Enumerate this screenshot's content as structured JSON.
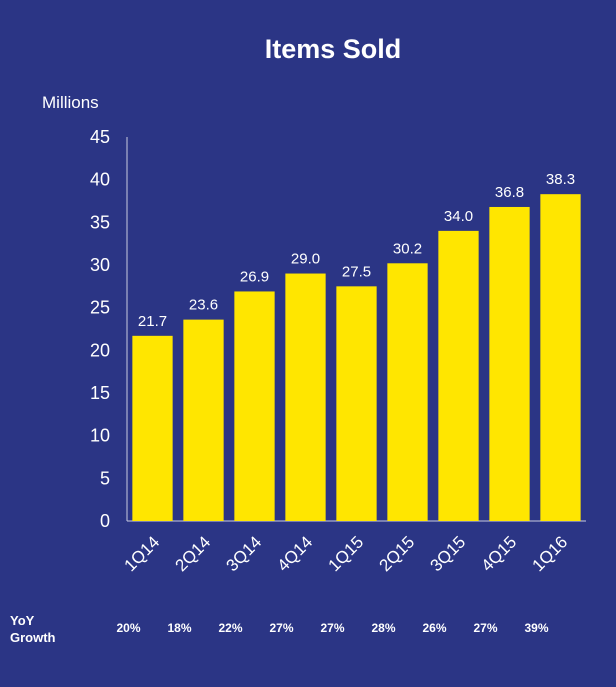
{
  "chart_data": {
    "type": "bar",
    "title": "Items Sold",
    "ylabel": "Millions",
    "xlabel": "",
    "categories": [
      "1Q14",
      "2Q14",
      "3Q14",
      "4Q14",
      "1Q15",
      "2Q15",
      "3Q15",
      "4Q15",
      "1Q16"
    ],
    "values": [
      21.7,
      23.6,
      26.9,
      29.0,
      27.5,
      30.2,
      34.0,
      36.8,
      38.3
    ],
    "data_labels": [
      "21.7",
      "23.6",
      "26.9",
      "29.0",
      "27.5",
      "30.2",
      "34.0",
      "36.8",
      "38.3"
    ],
    "ylim": [
      0,
      45
    ],
    "yticks": [
      0,
      5,
      10,
      15,
      20,
      25,
      30,
      35,
      40,
      45
    ],
    "grid": false,
    "bar_color": "#ffe600",
    "background_color": "#2b3585",
    "yoy_growth": {
      "label_line1": "YoY",
      "label_line2": "Growth",
      "values": [
        "20%",
        "18%",
        "22%",
        "27%",
        "27%",
        "28%",
        "26%",
        "27%",
        "39%"
      ]
    }
  }
}
